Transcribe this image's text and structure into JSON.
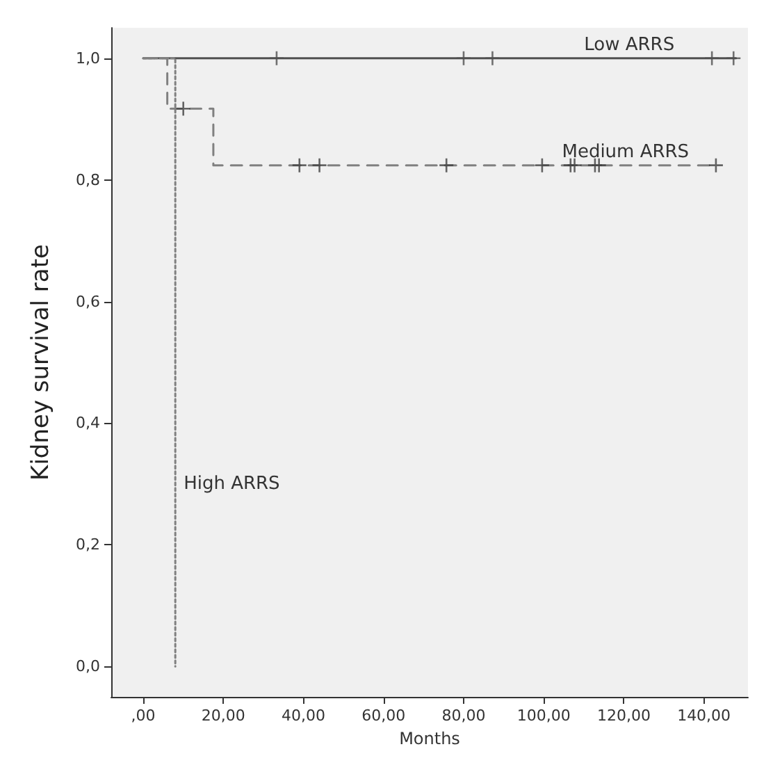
{
  "chart_data": {
    "type": "step",
    "xlabel": "Months",
    "ylabel": "Kidney survival rate",
    "xlim": [
      -8,
      151
    ],
    "ylim": [
      -0.05,
      1.05
    ],
    "xticks": [
      {
        "value": 0,
        "label": ",00"
      },
      {
        "value": 20,
        "label": "20,00"
      },
      {
        "value": 40,
        "label": "40,00"
      },
      {
        "value": 60,
        "label": "60,00"
      },
      {
        "value": 80,
        "label": "80,00"
      },
      {
        "value": 100,
        "label": "100,00"
      },
      {
        "value": 120,
        "label": "120,00"
      },
      {
        "value": 140,
        "label": "140,00"
      }
    ],
    "yticks": [
      {
        "value": 0,
        "label": "0,0"
      },
      {
        "value": 0.2,
        "label": "0,2"
      },
      {
        "value": 0.4,
        "label": "0,4"
      },
      {
        "value": 0.6,
        "label": "0,6"
      },
      {
        "value": 0.8,
        "label": "0,8"
      },
      {
        "value": 1,
        "label": "1,0"
      }
    ],
    "grid": false,
    "legend": false,
    "series": [
      {
        "name": "Low ARRS",
        "color": "#505050",
        "line_style": "solid",
        "x": [
          0,
          148
        ],
        "values": [
          1,
          1
        ]
      },
      {
        "name": "Medium ARRS",
        "color": "#808080",
        "line_style": "dashed",
        "x": [
          0,
          6,
          17.5,
          143
        ],
        "values": [
          1,
          0.917,
          0.824,
          0.824
        ]
      },
      {
        "name": "High ARRS",
        "color": "#808080",
        "line_style": "dotted",
        "x": [
          0,
          8
        ],
        "values": [
          1,
          0
        ]
      },
      {
        "type": "scatter",
        "marker": "cross",
        "color": "#505050",
        "x": [
          33.3,
          80,
          87.2,
          142,
          147.4
        ],
        "values": [
          1,
          1,
          1,
          1,
          1
        ]
      },
      {
        "type": "scatter",
        "marker": "cross",
        "color": "#404040",
        "x": [
          10,
          39,
          44,
          75.7,
          99.6,
          106.7,
          107.7,
          112.8,
          113.8,
          143
        ],
        "values": [
          0.917,
          0.824,
          0.824,
          0.824,
          0.824,
          0.824,
          0.824,
          0.824,
          0.824,
          0.824
        ]
      }
    ]
  }
}
